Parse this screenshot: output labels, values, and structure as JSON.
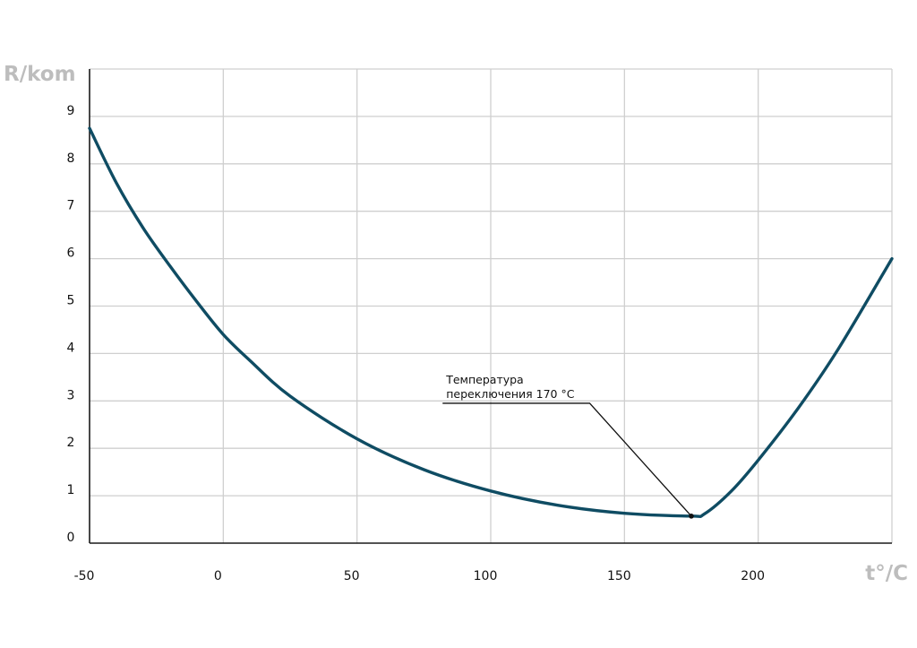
{
  "chart_data": {
    "type": "line",
    "xlabel": "t°/C",
    "ylabel": "R/kom",
    "xlim": [
      -50,
      250
    ],
    "ylim": [
      0,
      10
    ],
    "x_ticks": [
      -50,
      0,
      50,
      100,
      150,
      200
    ],
    "y_ticks": [
      0,
      1,
      2,
      3,
      4,
      5,
      6,
      7,
      8,
      9
    ],
    "grid": true,
    "colors": {
      "curve": "#0f4c63",
      "grid": "#cfcfcf",
      "axis": "#1a1a1a",
      "axis_title": "#bdbdbd"
    },
    "series": [
      {
        "x": [
          -50,
          -40,
          -30,
          -20,
          -10,
          0,
          10,
          25,
          50,
          75,
          100,
          125,
          150,
          175,
          180,
          190,
          200,
          215,
          230,
          250
        ],
        "y": [
          8.75,
          7.6,
          6.65,
          5.85,
          5.1,
          4.4,
          3.85,
          3.1,
          2.2,
          1.55,
          1.1,
          0.8,
          0.63,
          0.57,
          0.62,
          1.1,
          1.75,
          2.85,
          4.1,
          6.0
        ]
      }
    ],
    "annotations": [
      {
        "lines": [
          "Температура",
          "переключения 170 °С"
        ],
        "point": {
          "x": 175,
          "y": 0.57
        },
        "label_anchor": {
          "x": 82,
          "y": 2.95
        },
        "elbow": {
          "x": 137,
          "y": 2.95
        }
      }
    ]
  }
}
